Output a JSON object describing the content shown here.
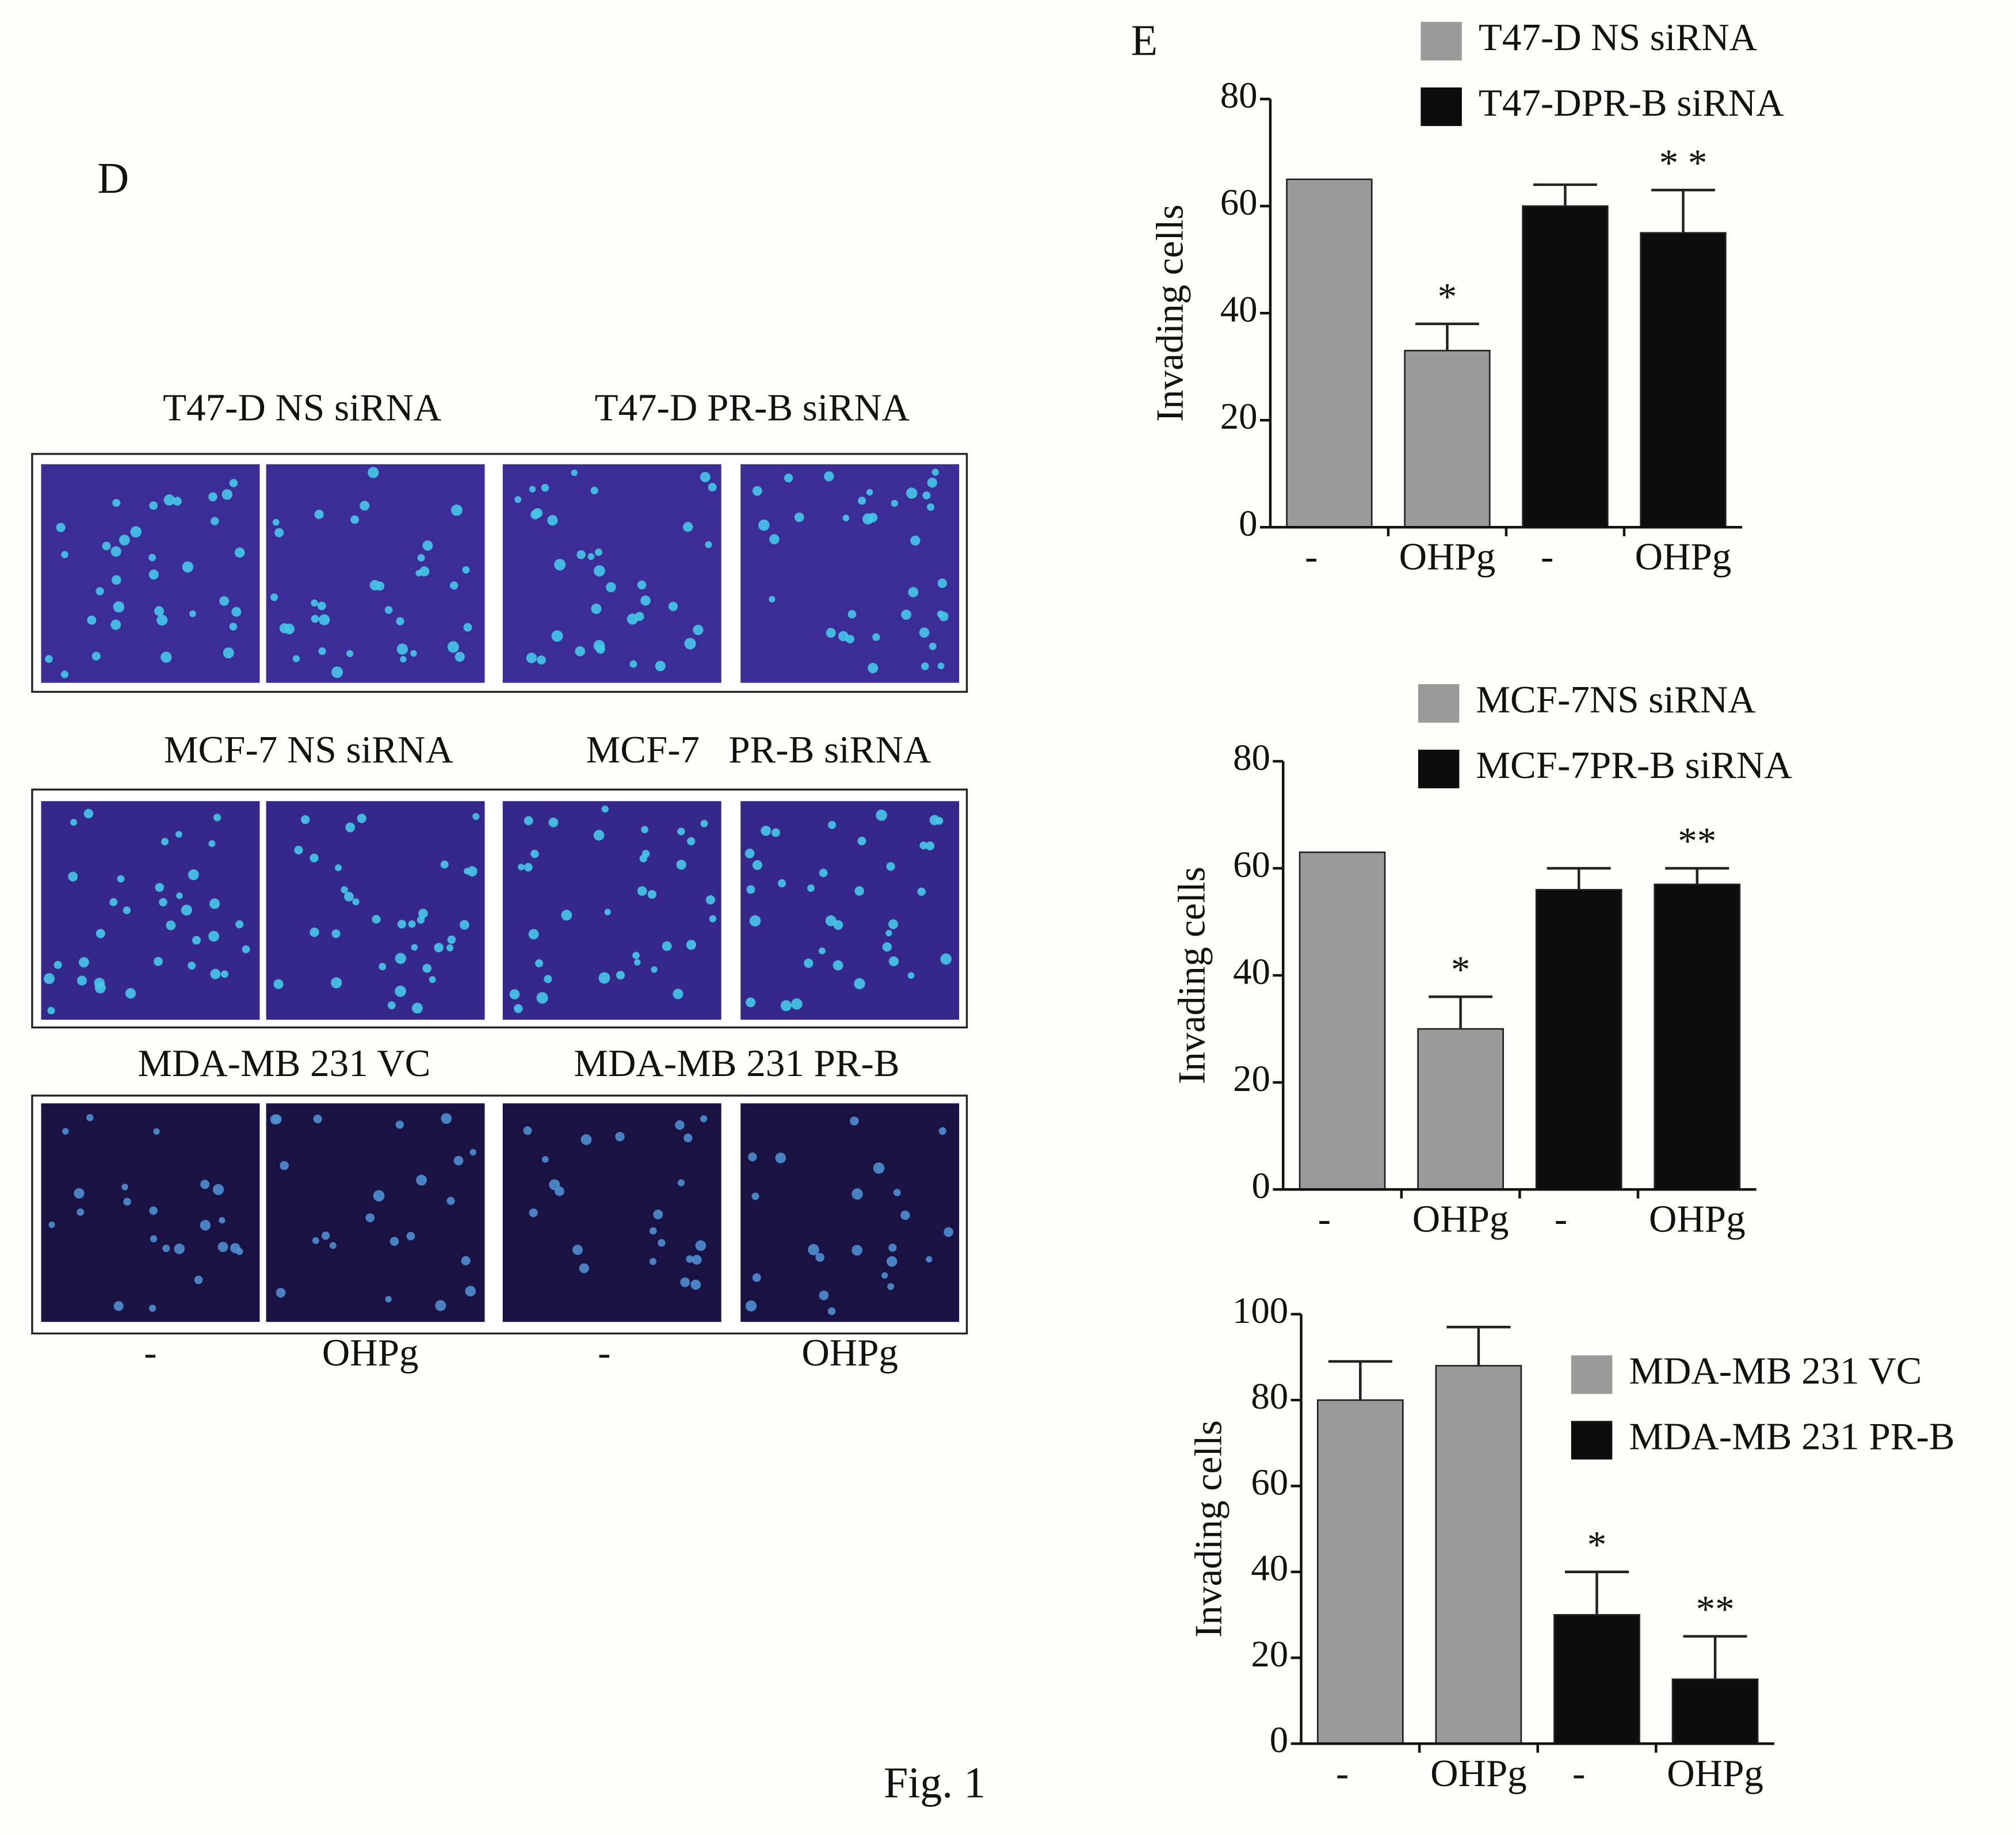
{
  "panel_d": {
    "label": "D",
    "rows": [
      {
        "labels": [
          "T47-D NS siRNA",
          "T47-D PR-B siRNA"
        ]
      },
      {
        "labels": [
          "MCF-7 NS siRNA",
          "MCF-7   PR-B siRNA"
        ]
      },
      {
        "labels": [
          "MDA-MB 231 VC",
          "MDA-MB 231 PR-B"
        ]
      }
    ],
    "treatments": [
      "-",
      "OHPg",
      "-",
      "OHPg"
    ]
  },
  "panel_e": {
    "label": "E"
  },
  "caption": "Fig. 1",
  "chart_data": [
    {
      "type": "bar",
      "y_label": "Invading cells",
      "categories": [
        "-",
        "OHPg",
        "-",
        "OHPg"
      ],
      "series": [
        {
          "name": "T47-D NS siRNA",
          "color": "#9b9b9b",
          "values": [
            65,
            33,
            null,
            null
          ],
          "errors": [
            null,
            5,
            null,
            null
          ]
        },
        {
          "name": "T47-DPR-B siRNA",
          "color": "#0d0d0d",
          "values": [
            null,
            null,
            60,
            55
          ],
          "errors": [
            null,
            null,
            4,
            8
          ]
        }
      ],
      "significance": [
        null,
        "*",
        null,
        "* *"
      ],
      "ylim": [
        0,
        80
      ],
      "yticks": [
        0,
        20,
        40,
        60,
        80
      ],
      "legend": "top"
    },
    {
      "type": "bar",
      "y_label": "Invading cells",
      "categories": [
        "-",
        "OHPg",
        "-",
        "OHPg"
      ],
      "series": [
        {
          "name": "MCF-7NS siRNA",
          "color": "#9b9b9b",
          "values": [
            63,
            30,
            null,
            null
          ],
          "errors": [
            null,
            6,
            null,
            null
          ]
        },
        {
          "name": "MCF-7PR-B siRNA",
          "color": "#0d0d0d",
          "values": [
            null,
            null,
            56,
            57
          ],
          "errors": [
            null,
            null,
            4,
            3
          ]
        }
      ],
      "significance": [
        null,
        "*",
        null,
        "**"
      ],
      "ylim": [
        0,
        80
      ],
      "yticks": [
        0,
        20,
        40,
        60,
        80
      ],
      "legend": "top"
    },
    {
      "type": "bar",
      "y_label": "Invading cells",
      "categories": [
        "-",
        "OHPg",
        "-",
        "OHPg"
      ],
      "series": [
        {
          "name": "MDA-MB 231 VC",
          "color": "#9b9b9b",
          "values": [
            80,
            88,
            null,
            null
          ],
          "errors": [
            9,
            9,
            null,
            null
          ]
        },
        {
          "name": "MDA-MB 231 PR-B",
          "color": "#0d0d0d",
          "values": [
            null,
            null,
            30,
            15
          ],
          "errors": [
            null,
            null,
            10,
            10
          ]
        }
      ],
      "significance": [
        null,
        null,
        "*",
        "**"
      ],
      "ylim": [
        0,
        100
      ],
      "yticks": [
        0,
        20,
        40,
        60,
        80,
        100
      ],
      "legend": "right"
    }
  ]
}
